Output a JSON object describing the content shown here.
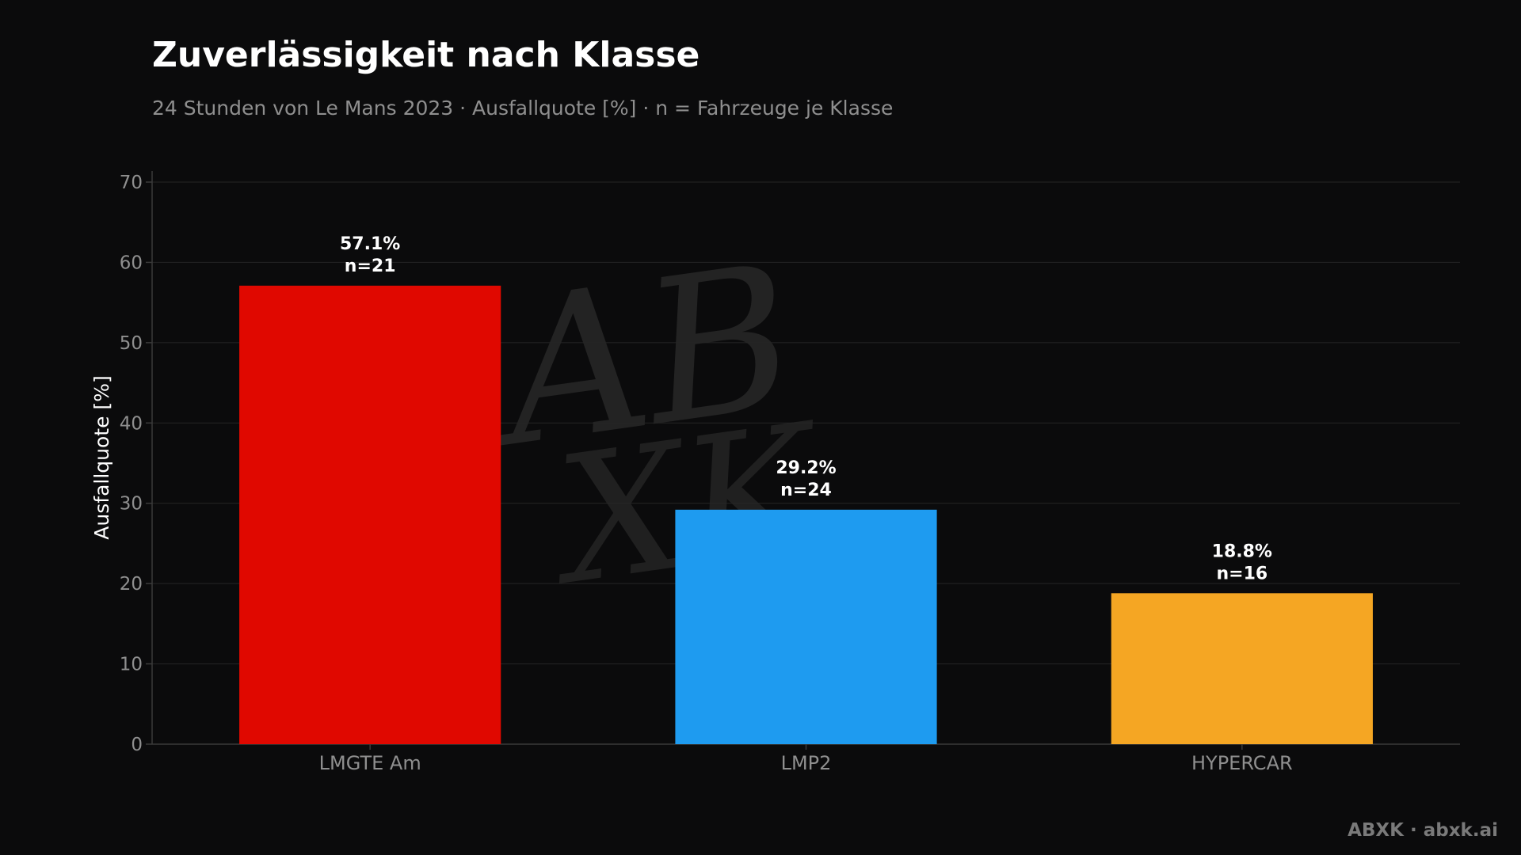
{
  "page": {
    "brand": "ABXK · abxk.ai",
    "watermark": [
      "AB",
      "XK"
    ]
  },
  "colors": {
    "background": "#0b0b0c",
    "grid": "#252525",
    "axis": "#3a3a3a",
    "tick_text": "#8f8f8f",
    "label_text": "#ffffff",
    "watermark": "#2a2a2a"
  },
  "chart_data": {
    "type": "bar",
    "title": "Zuverlässigkeit nach Klasse",
    "subtitle": "24 Stunden von Le Mans 2023 · Ausfallquote [%] · n = Fahrzeuge je Klasse",
    "xlabel": "",
    "ylabel": "Ausfallquote [%]",
    "categories": [
      "LMGTE Am",
      "LMP2",
      "HYPERCAR"
    ],
    "values": [
      57.1,
      29.2,
      18.8
    ],
    "n": [
      21,
      24,
      16
    ],
    "value_labels": [
      "57.1%",
      "29.2%",
      "18.8%"
    ],
    "n_labels": [
      "n=21",
      "n=24",
      "n=16"
    ],
    "bar_colors": [
      "#e00800",
      "#1e9bf0",
      "#f5a623"
    ],
    "ylim": [
      0,
      70
    ],
    "yticks": [
      0,
      10,
      20,
      30,
      40,
      50,
      60,
      70
    ],
    "grid": true,
    "legend": "none"
  }
}
